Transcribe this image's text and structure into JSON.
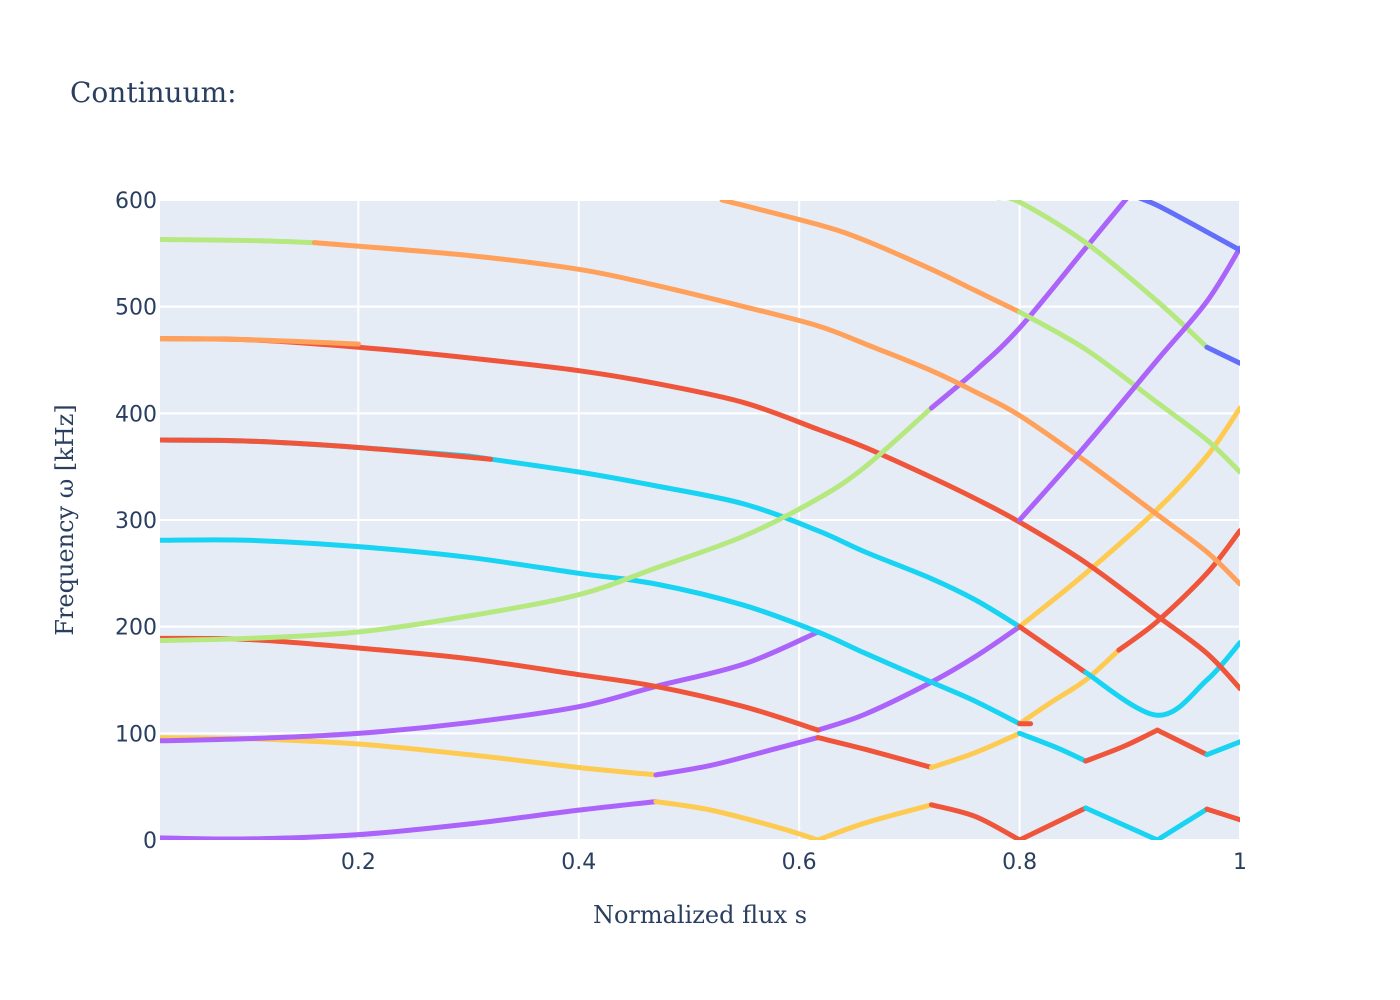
{
  "chart_data": {
    "type": "line",
    "title": "Continuum:",
    "xlabel": "Normalized flux s",
    "ylabel": "Frequency ω [kHz]",
    "xlim": [
      0.02,
      1.0
    ],
    "ylim": [
      0,
      600
    ],
    "xticks": [
      0.2,
      0.4,
      0.6,
      0.8,
      1.0
    ],
    "xtick_labels": [
      "0.2",
      "0.4",
      "0.6",
      "0.8",
      "1"
    ],
    "yticks": [
      0,
      100,
      200,
      300,
      400,
      500,
      600
    ],
    "ytick_labels": [
      "0",
      "100",
      "200",
      "300",
      "400",
      "500",
      "600"
    ],
    "grid": true,
    "legend": false,
    "colors": {
      "purple": "#AB63FA",
      "yellow": "#FECB52",
      "red": "#EF553B",
      "cyan": "#19D3F3",
      "green": "#B6E880",
      "orange": "#FFA15A",
      "blue": "#636EFA",
      "plot_bg": "#E5ECF6",
      "text": "#2a3f5f"
    },
    "series": [
      {
        "color": "purple",
        "points": [
          [
            0.02,
            2
          ],
          [
            0.1,
            1
          ],
          [
            0.2,
            5
          ],
          [
            0.3,
            15
          ],
          [
            0.4,
            28
          ],
          [
            0.47,
            36
          ]
        ]
      },
      {
        "color": "yellow",
        "points": [
          [
            0.47,
            36
          ],
          [
            0.52,
            28
          ],
          [
            0.58,
            12
          ],
          [
            0.617,
            0
          ]
        ]
      },
      {
        "color": "yellow",
        "points": [
          [
            0.617,
            0
          ],
          [
            0.66,
            16
          ],
          [
            0.72,
            33
          ]
        ]
      },
      {
        "color": "red",
        "points": [
          [
            0.72,
            33
          ],
          [
            0.76,
            22
          ],
          [
            0.8,
            0
          ]
        ]
      },
      {
        "color": "red",
        "points": [
          [
            0.8,
            0
          ],
          [
            0.86,
            30
          ]
        ]
      },
      {
        "color": "cyan",
        "points": [
          [
            0.86,
            30
          ],
          [
            0.925,
            0
          ]
        ]
      },
      {
        "color": "cyan",
        "points": [
          [
            0.925,
            0
          ],
          [
            0.97,
            29
          ]
        ]
      },
      {
        "color": "red",
        "points": [
          [
            0.97,
            29
          ],
          [
            1.0,
            19
          ]
        ]
      },
      {
        "color": "yellow",
        "points": [
          [
            0.02,
            96
          ],
          [
            0.1,
            95
          ],
          [
            0.2,
            90
          ],
          [
            0.3,
            80
          ],
          [
            0.4,
            68
          ],
          [
            0.47,
            61
          ]
        ]
      },
      {
        "color": "purple",
        "points": [
          [
            0.47,
            61
          ],
          [
            0.52,
            70
          ],
          [
            0.58,
            86
          ],
          [
            0.617,
            96
          ]
        ]
      },
      {
        "color": "red",
        "points": [
          [
            0.617,
            96
          ],
          [
            0.66,
            85
          ],
          [
            0.72,
            68
          ]
        ]
      },
      {
        "color": "yellow",
        "points": [
          [
            0.72,
            68
          ],
          [
            0.76,
            82
          ],
          [
            0.8,
            100
          ]
        ]
      },
      {
        "color": "cyan",
        "points": [
          [
            0.8,
            100
          ],
          [
            0.835,
            86
          ],
          [
            0.86,
            74
          ]
        ]
      },
      {
        "color": "red",
        "points": [
          [
            0.86,
            74
          ],
          [
            0.895,
            88
          ],
          [
            0.925,
            103
          ]
        ]
      },
      {
        "color": "red",
        "points": [
          [
            0.925,
            103
          ],
          [
            0.97,
            80
          ]
        ]
      },
      {
        "color": "cyan",
        "points": [
          [
            0.97,
            80
          ],
          [
            1.0,
            92
          ]
        ]
      },
      {
        "color": "purple",
        "points": [
          [
            0.02,
            93
          ],
          [
            0.1,
            95
          ],
          [
            0.2,
            100
          ],
          [
            0.3,
            110
          ],
          [
            0.4,
            125
          ],
          [
            0.47,
            144
          ],
          [
            0.55,
            165
          ],
          [
            0.617,
            195
          ]
        ]
      },
      {
        "color": "purple",
        "points": [
          [
            0.617,
            103
          ],
          [
            0.66,
            118
          ],
          [
            0.72,
            148
          ],
          [
            0.76,
            172
          ],
          [
            0.8,
            200
          ]
        ]
      },
      {
        "color": "yellow",
        "points": [
          [
            0.8,
            109
          ],
          [
            0.83,
            130
          ],
          [
            0.86,
            150
          ],
          [
            0.89,
            178
          ]
        ]
      },
      {
        "color": "red",
        "points": [
          [
            0.89,
            178
          ],
          [
            0.925,
            205
          ],
          [
            0.97,
            250
          ],
          [
            1.0,
            290
          ]
        ]
      },
      {
        "color": "red",
        "points": [
          [
            0.02,
            189
          ],
          [
            0.1,
            188
          ],
          [
            0.2,
            180
          ],
          [
            0.3,
            170
          ],
          [
            0.4,
            155
          ],
          [
            0.47,
            144
          ],
          [
            0.55,
            125
          ],
          [
            0.617,
            103
          ]
        ]
      },
      {
        "color": "cyan",
        "points": [
          [
            0.02,
            281
          ],
          [
            0.1,
            281
          ],
          [
            0.2,
            275
          ],
          [
            0.3,
            265
          ],
          [
            0.4,
            250
          ],
          [
            0.47,
            240
          ],
          [
            0.55,
            220
          ],
          [
            0.617,
            195
          ],
          [
            0.66,
            175
          ],
          [
            0.72,
            148
          ],
          [
            0.76,
            130
          ],
          [
            0.8,
            109
          ]
        ]
      },
      {
        "color": "red",
        "points": [
          [
            0.8,
            109
          ],
          [
            0.81,
            109
          ]
        ]
      },
      {
        "color": "cyan",
        "points": [
          [
            0.02,
            375
          ],
          [
            0.1,
            374
          ],
          [
            0.2,
            368
          ],
          [
            0.3,
            360
          ]
        ]
      },
      {
        "color": "cyan",
        "points": [
          [
            0.3,
            360
          ],
          [
            0.4,
            345
          ],
          [
            0.47,
            332
          ],
          [
            0.55,
            315
          ],
          [
            0.617,
            290
          ],
          [
            0.66,
            270
          ],
          [
            0.72,
            245
          ],
          [
            0.76,
            225
          ],
          [
            0.8,
            200
          ]
        ]
      },
      {
        "color": "red",
        "points": [
          [
            0.02,
            375
          ],
          [
            0.1,
            374
          ],
          [
            0.2,
            368
          ],
          [
            0.32,
            357
          ]
        ]
      },
      {
        "color": "yellow",
        "points": [
          [
            0.8,
            200
          ],
          [
            0.86,
            250
          ],
          [
            0.925,
            310
          ],
          [
            0.97,
            360
          ],
          [
            1.0,
            405
          ]
        ]
      },
      {
        "color": "red",
        "points": [
          [
            0.8,
            200
          ],
          [
            0.86,
            157
          ]
        ]
      },
      {
        "color": "cyan",
        "points": [
          [
            0.86,
            157
          ],
          [
            0.925,
            117
          ],
          [
            0.97,
            150
          ],
          [
            1.0,
            185
          ]
        ]
      },
      {
        "color": "red",
        "points": [
          [
            0.02,
            470
          ],
          [
            0.1,
            469
          ],
          [
            0.2,
            462
          ],
          [
            0.3,
            452
          ],
          [
            0.4,
            440
          ],
          [
            0.47,
            428
          ],
          [
            0.55,
            410
          ],
          [
            0.617,
            385
          ],
          [
            0.66,
            368
          ],
          [
            0.72,
            340
          ],
          [
            0.76,
            320
          ],
          [
            0.8,
            298
          ],
          [
            0.86,
            260
          ],
          [
            0.925,
            210
          ],
          [
            0.97,
            175
          ],
          [
            1.0,
            142
          ]
        ]
      },
      {
        "color": "orange",
        "points": [
          [
            0.02,
            470
          ],
          [
            0.1,
            469
          ],
          [
            0.2,
            465
          ]
        ]
      },
      {
        "color": "green",
        "points": [
          [
            0.02,
            187
          ],
          [
            0.1,
            189
          ],
          [
            0.2,
            195
          ],
          [
            0.3,
            210
          ],
          [
            0.4,
            230
          ],
          [
            0.47,
            255
          ],
          [
            0.55,
            285
          ],
          [
            0.617,
            320
          ],
          [
            0.66,
            350
          ],
          [
            0.72,
            405
          ]
        ]
      },
      {
        "color": "purple",
        "points": [
          [
            0.72,
            405
          ],
          [
            0.76,
            440
          ],
          [
            0.8,
            480
          ],
          [
            0.86,
            555
          ],
          [
            0.9,
            605
          ]
        ]
      },
      {
        "color": "green",
        "points": [
          [
            0.02,
            563
          ],
          [
            0.1,
            562
          ],
          [
            0.16,
            560
          ]
        ]
      },
      {
        "color": "orange",
        "points": [
          [
            0.16,
            560
          ],
          [
            0.3,
            548
          ],
          [
            0.4,
            535
          ],
          [
            0.47,
            520
          ],
          [
            0.55,
            500
          ],
          [
            0.617,
            482
          ],
          [
            0.66,
            465
          ],
          [
            0.72,
            440
          ],
          [
            0.76,
            420
          ],
          [
            0.8,
            398
          ],
          [
            0.86,
            355
          ],
          [
            0.925,
            305
          ],
          [
            0.97,
            270
          ],
          [
            1.0,
            240
          ]
        ]
      },
      {
        "color": "orange",
        "points": [
          [
            0.53,
            600
          ],
          [
            0.617,
            577
          ],
          [
            0.66,
            562
          ],
          [
            0.72,
            535
          ],
          [
            0.76,
            515
          ],
          [
            0.8,
            495
          ]
        ]
      },
      {
        "color": "green",
        "points": [
          [
            0.78,
            602
          ],
          [
            0.8,
            598
          ],
          [
            0.86,
            560
          ],
          [
            0.925,
            505
          ],
          [
            0.97,
            462
          ]
        ]
      },
      {
        "color": "blue",
        "points": [
          [
            0.97,
            462
          ],
          [
            1.0,
            447
          ]
        ]
      },
      {
        "color": "green",
        "points": [
          [
            0.8,
            495
          ],
          [
            0.86,
            460
          ],
          [
            0.925,
            410
          ],
          [
            0.97,
            375
          ],
          [
            1.0,
            345
          ]
        ]
      },
      {
        "color": "purple",
        "points": [
          [
            0.8,
            300
          ],
          [
            0.86,
            370
          ],
          [
            0.925,
            450
          ],
          [
            0.97,
            505
          ],
          [
            1.0,
            555
          ]
        ]
      },
      {
        "color": "blue",
        "points": [
          [
            0.9,
            605
          ],
          [
            0.925,
            595
          ],
          [
            0.97,
            570
          ],
          [
            1.0,
            553
          ]
        ]
      }
    ]
  }
}
